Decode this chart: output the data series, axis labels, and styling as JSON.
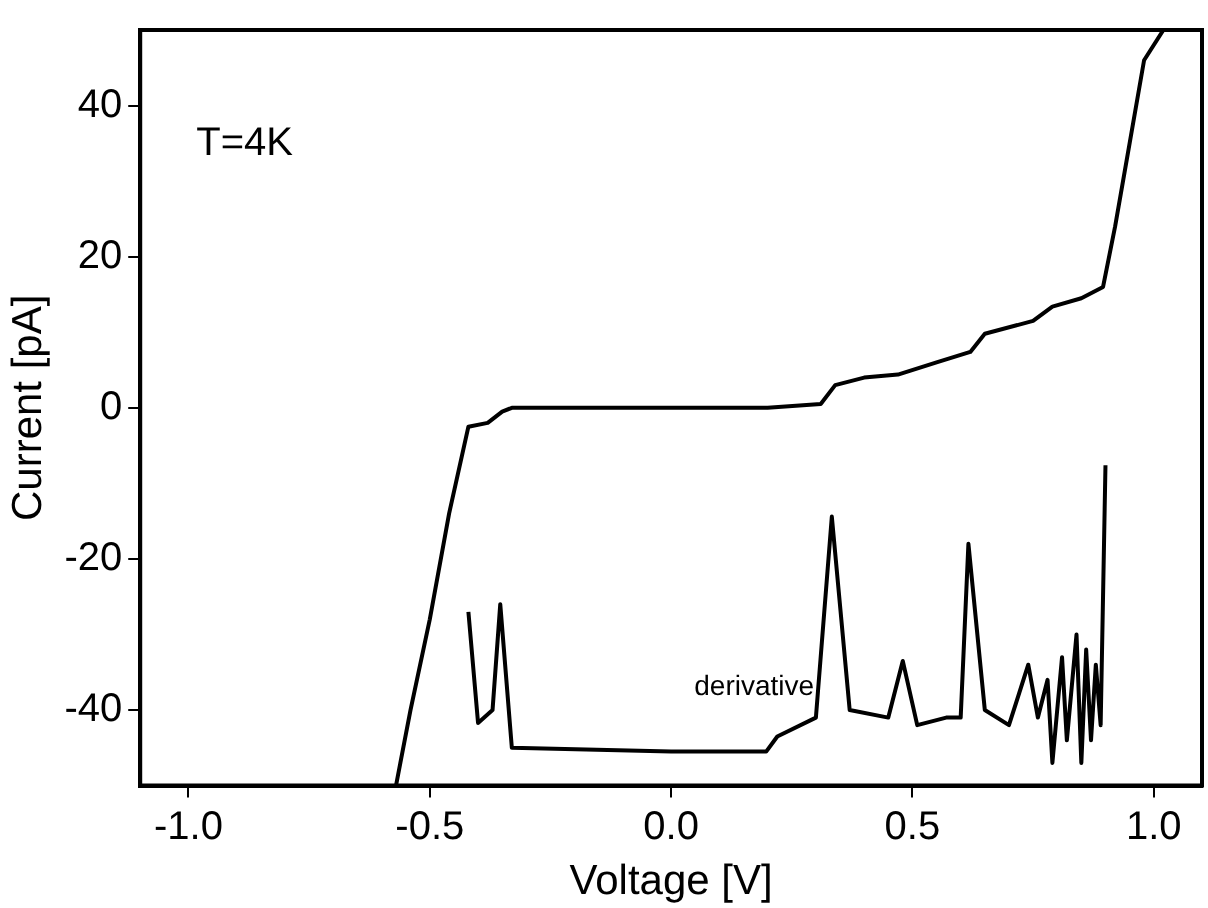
{
  "chart_data": {
    "type": "line",
    "xlabel": "Voltage [V]",
    "ylabel": "Current [pA]",
    "xlim": [
      -1.1,
      1.1
    ],
    "xticks": [
      {
        "value": -1,
        "label": "-1.0"
      },
      {
        "value": -0.5,
        "label": "-0.5"
      },
      {
        "value": 0,
        "label": "0.0"
      },
      {
        "value": 0.5,
        "label": "0.5"
      },
      {
        "value": 1,
        "label": "1.0"
      }
    ],
    "ylim": [
      -50,
      50
    ],
    "yticks": [
      -40,
      -20,
      0,
      20,
      40
    ],
    "grid": false,
    "legend": false,
    "marker": "none",
    "line_style": "solid",
    "annotations": [
      "T=4K"
    ],
    "series": [
      {
        "color": "#000000",
        "x": [
          -0.57,
          -0.54,
          -0.5,
          -0.46,
          -0.42,
          -0.38,
          -0.35,
          -0.33,
          0.0,
          0.2,
          0.31,
          0.34,
          0.4,
          0.47,
          0.55,
          0.62,
          0.65,
          0.75,
          0.79,
          0.85,
          0.895,
          0.92,
          0.95,
          0.98,
          1.02
        ],
        "values": [
          -50,
          -40,
          -28,
          -14,
          -2.5,
          -2,
          -0.5,
          0,
          0,
          0,
          0.5,
          3,
          4,
          4.4,
          6,
          7.4,
          9.8,
          11.5,
          13.4,
          14.5,
          16,
          24,
          35,
          46,
          50
        ]
      },
      {
        "name": "derivative",
        "color": "#000000",
        "x": [
          -0.42,
          -0.4,
          -0.37,
          -0.354,
          -0.33,
          0.0,
          0.197,
          0.22,
          0.3,
          0.333,
          0.37,
          0.45,
          0.48,
          0.51,
          0.57,
          0.6,
          0.616,
          0.65,
          0.7,
          0.74,
          0.76,
          0.78,
          0.79,
          0.81,
          0.82,
          0.84,
          0.85,
          0.86,
          0.87,
          0.88,
          0.89,
          0.9
        ],
        "values": [
          -27,
          -41.7,
          -40,
          -26,
          -45,
          -45.5,
          -45.5,
          -43.5,
          -41,
          -14.4,
          -40,
          -41,
          -33.5,
          -42,
          -41,
          -41,
          -18,
          -40,
          -42,
          -34,
          -41,
          -36,
          -47,
          -33,
          -44,
          -30,
          -47,
          -32,
          -44,
          -34,
          -42,
          -7.6
        ]
      }
    ]
  }
}
